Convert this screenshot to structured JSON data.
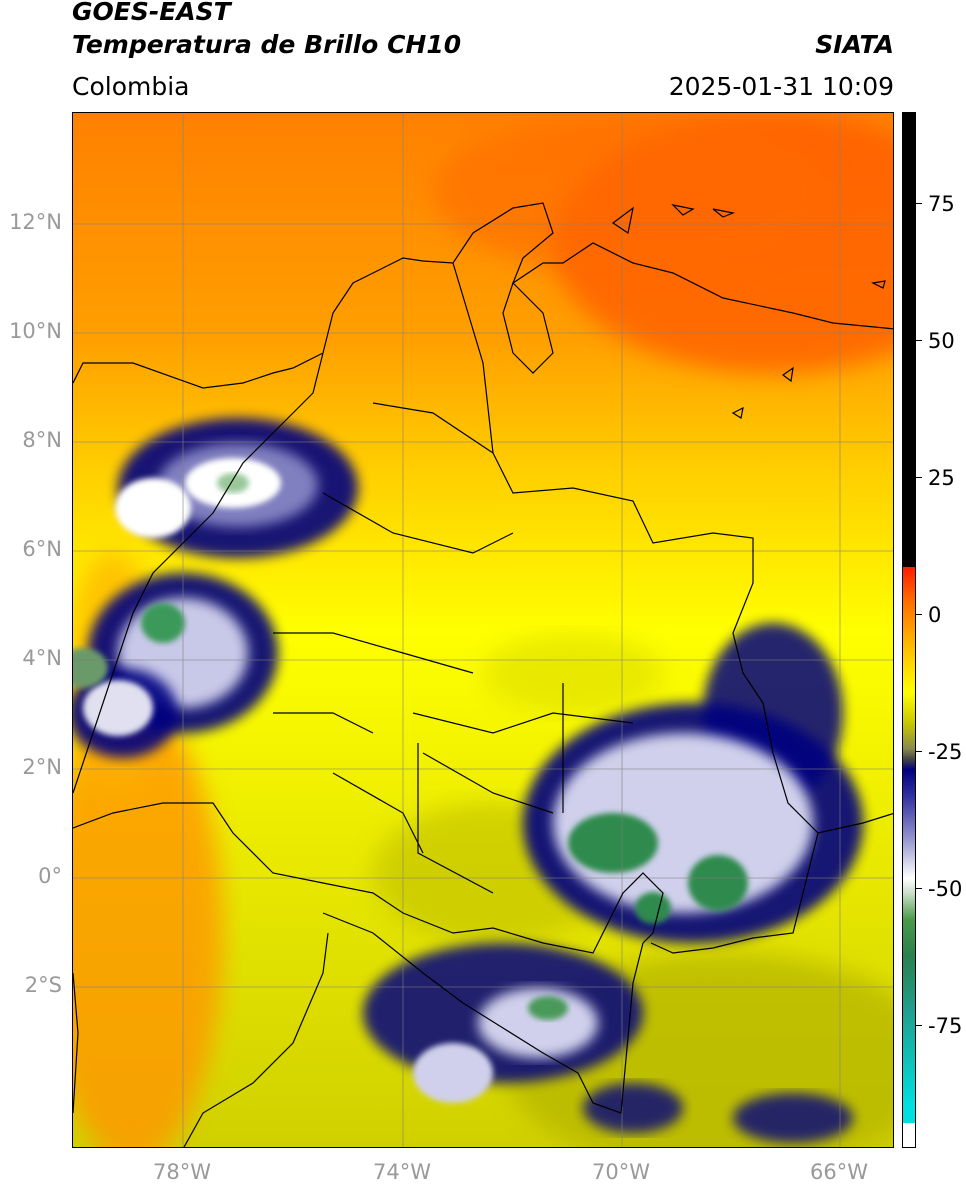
{
  "header": {
    "title_line1": "GOES-EAST",
    "title_line2": "Temperatura de Brillo CH10",
    "brand": "SIATA",
    "region": "Colombia",
    "datetime": "2025-01-31 10:09"
  },
  "axes": {
    "lat_labels": [
      "12°N",
      "10°N",
      "8°N",
      "6°N",
      "4°N",
      "2°N",
      "0°",
      "2°S"
    ],
    "lon_labels": [
      "78°W",
      "74°W",
      "70°W",
      "66°W"
    ]
  },
  "colorbar": {
    "labels": [
      "75",
      "50",
      "25",
      "0",
      "-25",
      "-50",
      "-75"
    ]
  },
  "colors": {
    "warm_orange": "#ff8c00",
    "hot_red": "#ff5a00",
    "mid_yellow": "#ffff00",
    "olive": "#c8c800",
    "cold_navy": "#000080",
    "cold_white": "#ffffff",
    "cold_green": "#3a9a5a"
  }
}
